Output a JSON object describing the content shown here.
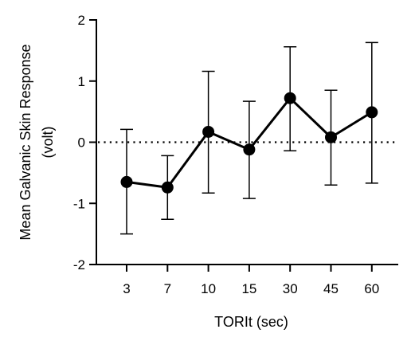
{
  "chart_data": {
    "type": "line",
    "title": "",
    "xlabel": "TORIt (sec)",
    "ylabel_line1": "Mean Galvanic Skin Response",
    "ylabel_line2": "(volt)",
    "categories": [
      "3",
      "7",
      "10",
      "15",
      "30",
      "45",
      "60"
    ],
    "ylim": [
      -2,
      2
    ],
    "yticks": [
      -2,
      -1,
      0,
      1,
      2
    ],
    "ytick_labels": [
      "-2",
      "-1",
      "0",
      "1",
      "2"
    ],
    "reference_line": {
      "y": 0,
      "style": "dotted"
    },
    "series": [
      {
        "values": [
          -0.65,
          -0.74,
          0.17,
          -0.12,
          0.72,
          0.08,
          0.49
        ],
        "error_upper": [
          0.21,
          -0.22,
          1.16,
          0.67,
          1.56,
          0.85,
          1.63
        ],
        "error_lower": [
          -1.5,
          -1.26,
          -0.83,
          -0.92,
          -0.14,
          -0.7,
          -0.67
        ]
      }
    ],
    "grid": false,
    "legend": "none"
  }
}
